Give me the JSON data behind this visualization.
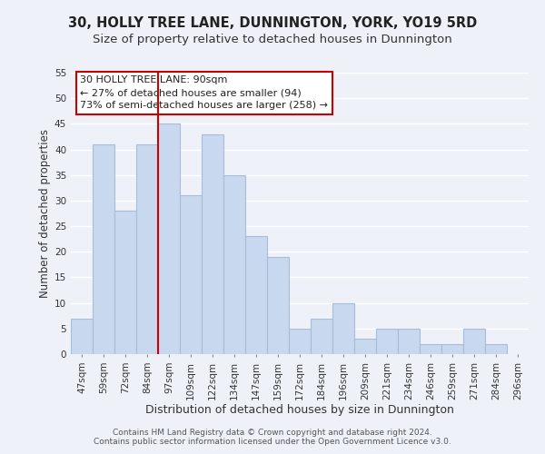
{
  "title": "30, HOLLY TREE LANE, DUNNINGTON, YORK, YO19 5RD",
  "subtitle": "Size of property relative to detached houses in Dunnington",
  "xlabel": "Distribution of detached houses by size in Dunnington",
  "ylabel": "Number of detached properties",
  "bar_labels": [
    "47sqm",
    "59sqm",
    "72sqm",
    "84sqm",
    "97sqm",
    "109sqm",
    "122sqm",
    "134sqm",
    "147sqm",
    "159sqm",
    "172sqm",
    "184sqm",
    "196sqm",
    "209sqm",
    "221sqm",
    "234sqm",
    "246sqm",
    "259sqm",
    "271sqm",
    "284sqm",
    "296sqm"
  ],
  "bar_values": [
    7,
    41,
    28,
    41,
    45,
    31,
    43,
    35,
    23,
    19,
    5,
    7,
    10,
    3,
    5,
    5,
    2,
    2,
    5,
    2,
    0
  ],
  "bar_color": "#c8d8ee",
  "bar_edge_color": "#a8bcd8",
  "ylim": [
    0,
    55
  ],
  "yticks": [
    0,
    5,
    10,
    15,
    20,
    25,
    30,
    35,
    40,
    45,
    50,
    55
  ],
  "vline_color": "#cc0000",
  "vline_x": 3.5,
  "annotation_title": "30 HOLLY TREE LANE: 90sqm",
  "annotation_line1": "← 27% of detached houses are smaller (94)",
  "annotation_line2": "73% of semi-detached houses are larger (258) →",
  "annotation_box_color": "#ffffff",
  "annotation_box_edge": "#cc0000",
  "footer_line1": "Contains HM Land Registry data © Crown copyright and database right 2024.",
  "footer_line2": "Contains public sector information licensed under the Open Government Licence v3.0.",
  "background_color": "#eef2f8",
  "plot_background": "#eef2f8",
  "grid_color": "#ffffff",
  "title_fontsize": 10.5,
  "subtitle_fontsize": 9.5,
  "xlabel_fontsize": 9,
  "ylabel_fontsize": 8.5,
  "tick_fontsize": 7.5,
  "annotation_fontsize": 8,
  "footer_fontsize": 6.5
}
